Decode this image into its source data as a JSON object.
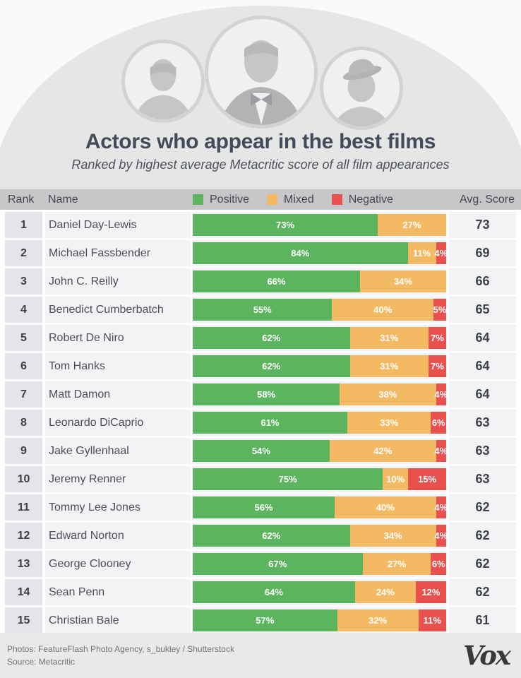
{
  "hero": {
    "title": "Actors who appear in the best films",
    "subtitle": "Ranked by highest average Metacritic score of all film appearances",
    "photos": [
      {
        "name": "Michael Fassbender"
      },
      {
        "name": "Daniel Day-Lewis"
      },
      {
        "name": "John C. Reilly"
      }
    ]
  },
  "header": {
    "rank": "Rank",
    "name": "Name",
    "score": "Avg. Score",
    "legend": [
      {
        "label": "Positive",
        "key": "positive"
      },
      {
        "label": "Mixed",
        "key": "mixed"
      },
      {
        "label": "Negative",
        "key": "negative"
      }
    ]
  },
  "colors": {
    "positive": "#5cb45f",
    "mixed": "#f3ba63",
    "negative": "#e8514d",
    "header_band": "#c7c6c9",
    "rank_cell": "#e5e4eb",
    "row_bg": "#f3f3f6",
    "arch": "#e7e6e7",
    "footer_bg": "#e9e8ea"
  },
  "chart_data": {
    "type": "bar",
    "orientation": "horizontal-stacked",
    "title": "Actors who appear in the best films",
    "subtitle": "Ranked by highest average Metacritic score of all film appearances",
    "legend_position": "top",
    "value_format": "percent",
    "xlim": [
      0,
      100
    ],
    "ranks": [
      1,
      2,
      3,
      4,
      5,
      6,
      7,
      8,
      9,
      10,
      11,
      12,
      13,
      14,
      15
    ],
    "categories": [
      "Daniel Day-Lewis",
      "Michael Fassbender",
      "John C. Reilly",
      "Benedict Cumberbatch",
      "Robert De Niro",
      "Tom Hanks",
      "Matt Damon",
      "Leonardo DiCaprio",
      "Jake Gyllenhaal",
      "Jeremy Renner",
      "Tommy Lee Jones",
      "Edward Norton",
      "George Clooney",
      "Sean Penn",
      "Christian Bale"
    ],
    "series": [
      {
        "name": "Positive",
        "key": "positive",
        "values": [
          73,
          84,
          66,
          55,
          62,
          62,
          58,
          61,
          54,
          75,
          56,
          62,
          67,
          64,
          57
        ]
      },
      {
        "name": "Mixed",
        "key": "mixed",
        "values": [
          27,
          11,
          34,
          40,
          31,
          31,
          38,
          33,
          42,
          10,
          40,
          34,
          27,
          24,
          32
        ]
      },
      {
        "name": "Negative",
        "key": "negative",
        "values": [
          0,
          4,
          0,
          5,
          7,
          7,
          4,
          6,
          4,
          15,
          4,
          4,
          6,
          12,
          11
        ]
      }
    ],
    "avg_scores": [
      73,
      69,
      66,
      65,
      64,
      64,
      64,
      63,
      63,
      63,
      62,
      62,
      62,
      62,
      61
    ]
  },
  "footer": {
    "credits_line1": "Photos: FeatureFlash Photo Agency, s_bukley / Shutterstock",
    "credits_line2": "Source: Metacritic",
    "logo": "Vox"
  }
}
